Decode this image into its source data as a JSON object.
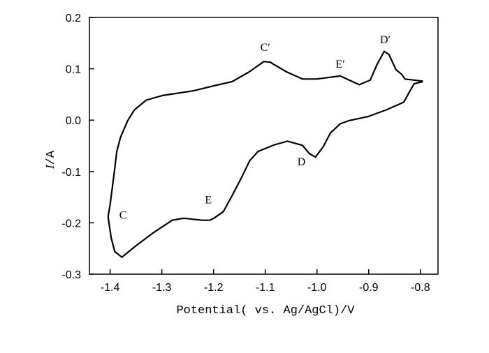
{
  "chart_data": {
    "type": "line",
    "title": "",
    "xlabel": "Potential( vs. Ag/AgCl)/V",
    "ylabel_italic": "I",
    "ylabel_rest": "/A",
    "xlim": [
      -1.44,
      -0.766
    ],
    "ylim": [
      -0.3,
      0.2
    ],
    "xticks": [
      -1.4,
      -1.3,
      -1.2,
      -1.1,
      -1.0,
      -0.9,
      -0.8
    ],
    "xtick_labels": [
      "-1.4",
      "-1.3",
      "-1.2",
      "-1.1",
      "-1.0",
      "-0.9",
      "-0.8"
    ],
    "yticks": [
      0.2,
      0.1,
      0.0,
      -0.1,
      -0.2,
      -0.3
    ],
    "ytick_labels": [
      "0.2",
      "0.1",
      "0.0",
      "-0.1",
      "-0.2",
      "-0.3"
    ],
    "grid": false,
    "line_color": "#000000",
    "series": [
      {
        "x": [
          -0.795,
          -0.812,
          -0.82,
          -0.832,
          -0.866,
          -0.901,
          -0.938,
          -0.955,
          -0.974,
          -0.988,
          -1.003,
          -1.015,
          -1.028,
          -1.057,
          -1.082,
          -1.114,
          -1.13,
          -1.145,
          -1.164,
          -1.181,
          -1.199,
          -1.208,
          -1.222,
          -1.258,
          -1.28,
          -1.316,
          -1.353,
          -1.377,
          -1.391,
          -1.398,
          -1.404,
          -1.4,
          -1.393,
          -1.387,
          -1.38,
          -1.366,
          -1.353,
          -1.33,
          -1.299,
          -1.239,
          -1.199,
          -1.164,
          -1.131,
          -1.103,
          -1.091,
          -1.059,
          -1.028,
          -1.001,
          -0.955,
          -0.938,
          -0.918,
          -0.897,
          -0.884,
          -0.87,
          -0.861,
          -0.847,
          -0.836,
          -0.83,
          -0.795
        ],
        "y": [
          0.075,
          0.071,
          0.057,
          0.035,
          0.02,
          0.007,
          -0.001,
          -0.007,
          -0.025,
          -0.052,
          -0.072,
          -0.065,
          -0.049,
          -0.041,
          -0.048,
          -0.061,
          -0.079,
          -0.11,
          -0.147,
          -0.178,
          -0.191,
          -0.195,
          -0.195,
          -0.191,
          -0.195,
          -0.219,
          -0.247,
          -0.267,
          -0.256,
          -0.229,
          -0.188,
          -0.165,
          -0.11,
          -0.061,
          -0.034,
          -0.001,
          0.02,
          0.039,
          0.048,
          0.057,
          0.067,
          0.075,
          0.094,
          0.114,
          0.113,
          0.094,
          0.08,
          0.08,
          0.086,
          0.078,
          0.069,
          0.078,
          0.108,
          0.134,
          0.128,
          0.098,
          0.089,
          0.08,
          0.076
        ]
      }
    ],
    "annotations": [
      {
        "text": "C",
        "x": -1.375,
        "y": -0.192
      },
      {
        "text": "E",
        "x": -1.21,
        "y": -0.162
      },
      {
        "text": "D",
        "x": -1.03,
        "y": -0.088
      },
      {
        "text": "C′",
        "x": -1.1,
        "y": 0.135
      },
      {
        "text": "E′",
        "x": -0.955,
        "y": 0.102
      },
      {
        "text": "D′",
        "x": -0.868,
        "y": 0.15
      }
    ]
  }
}
